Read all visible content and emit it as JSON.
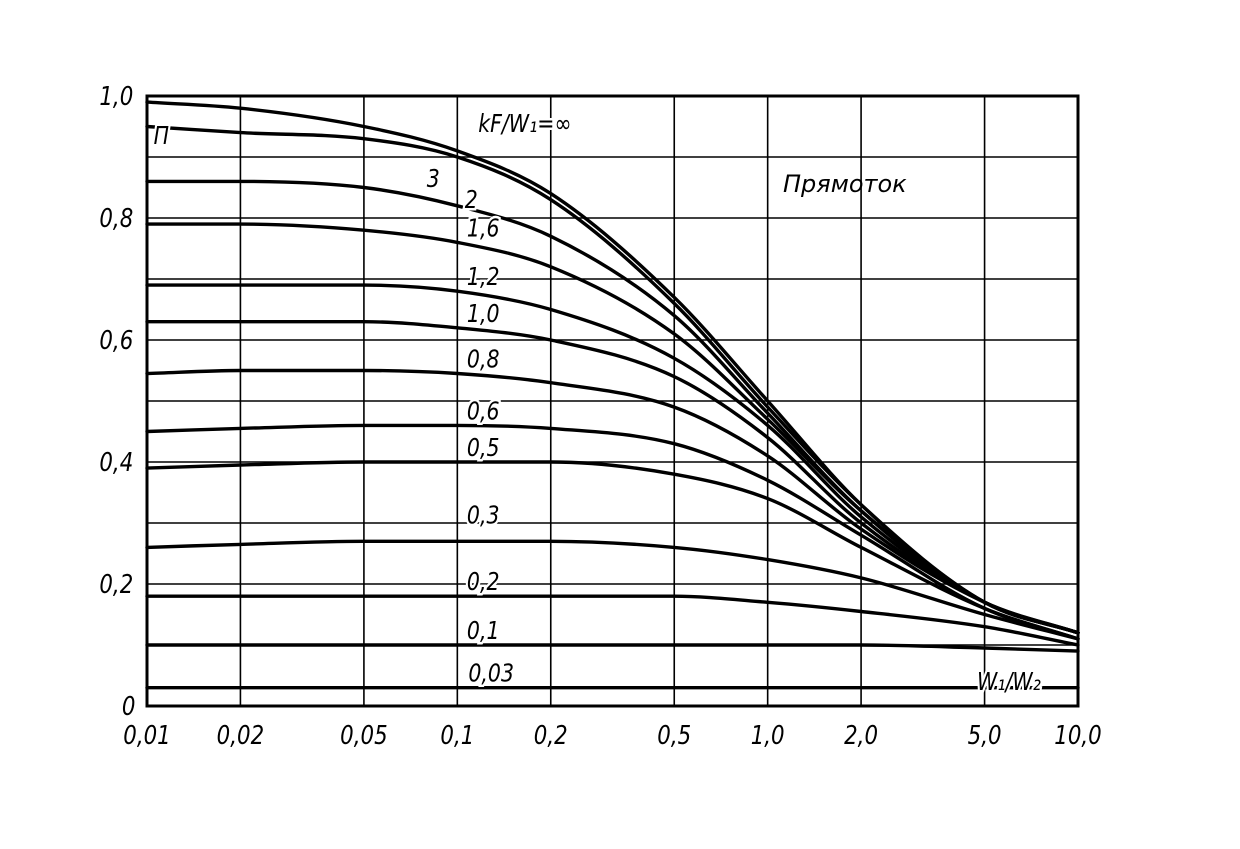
{
  "chart_data": {
    "type": "line",
    "title": "",
    "annotation": "Прямоток",
    "ylabel": "П",
    "xlabel": "W₁/W₂",
    "family_label": "kF/W₁=∞",
    "x_scale": "log",
    "xlim": [
      0.01,
      10.0
    ],
    "ylim": [
      0,
      1.0
    ],
    "grid": true,
    "x_ticks": [
      0.01,
      0.02,
      0.05,
      0.1,
      0.2,
      0.5,
      1.0,
      2.0,
      5.0,
      10.0
    ],
    "x_tick_labels": [
      "0,01",
      "0,02",
      "0,05",
      "0,1",
      "0,2",
      "0,5",
      "1,0",
      "2,0",
      "5,0",
      "10,0"
    ],
    "y_ticks": [
      0,
      0.2,
      0.4,
      0.6,
      0.8,
      1.0
    ],
    "y_tick_labels": [
      "0",
      "0,2",
      "0,4",
      "0,6",
      "0,8",
      "1,0"
    ],
    "x": [
      0.01,
      0.02,
      0.05,
      0.1,
      0.2,
      0.5,
      1.0,
      2.0,
      5.0,
      10.0
    ],
    "series": [
      {
        "name": "∞",
        "values": [
          0.99,
          0.98,
          0.95,
          0.91,
          0.84,
          0.67,
          0.5,
          0.33,
          0.17,
          0.12
        ]
      },
      {
        "name": "3",
        "values": [
          0.95,
          0.94,
          0.93,
          0.9,
          0.83,
          0.66,
          0.49,
          0.33,
          0.17,
          0.12
        ]
      },
      {
        "name": "2",
        "values": [
          0.86,
          0.86,
          0.85,
          0.82,
          0.77,
          0.64,
          0.48,
          0.32,
          0.17,
          0.12
        ]
      },
      {
        "name": "1,6",
        "values": [
          0.79,
          0.79,
          0.78,
          0.76,
          0.72,
          0.61,
          0.47,
          0.32,
          0.17,
          0.12
        ]
      },
      {
        "name": "1,2",
        "values": [
          0.69,
          0.69,
          0.69,
          0.68,
          0.65,
          0.57,
          0.46,
          0.31,
          0.17,
          0.12
        ]
      },
      {
        "name": "1,0",
        "values": [
          0.63,
          0.63,
          0.63,
          0.62,
          0.6,
          0.54,
          0.44,
          0.3,
          0.17,
          0.12
        ]
      },
      {
        "name": "0,8",
        "values": [
          0.545,
          0.55,
          0.55,
          0.545,
          0.53,
          0.49,
          0.41,
          0.29,
          0.17,
          0.12
        ]
      },
      {
        "name": "0,6",
        "values": [
          0.45,
          0.455,
          0.46,
          0.46,
          0.455,
          0.43,
          0.37,
          0.28,
          0.16,
          0.11
        ]
      },
      {
        "name": "0,5",
        "values": [
          0.39,
          0.395,
          0.4,
          0.4,
          0.4,
          0.38,
          0.34,
          0.26,
          0.16,
          0.11
        ]
      },
      {
        "name": "0,3",
        "values": [
          0.26,
          0.265,
          0.27,
          0.27,
          0.27,
          0.26,
          0.24,
          0.21,
          0.15,
          0.11
        ]
      },
      {
        "name": "0,2",
        "values": [
          0.18,
          0.18,
          0.18,
          0.18,
          0.18,
          0.18,
          0.17,
          0.155,
          0.13,
          0.1
        ]
      },
      {
        "name": "0,1",
        "values": [
          0.1,
          0.1,
          0.1,
          0.1,
          0.1,
          0.1,
          0.1,
          0.1,
          0.095,
          0.09
        ]
      },
      {
        "name": "0,03",
        "values": [
          0.03,
          0.03,
          0.03,
          0.03,
          0.03,
          0.03,
          0.03,
          0.03,
          0.03,
          0.03
        ]
      }
    ]
  }
}
